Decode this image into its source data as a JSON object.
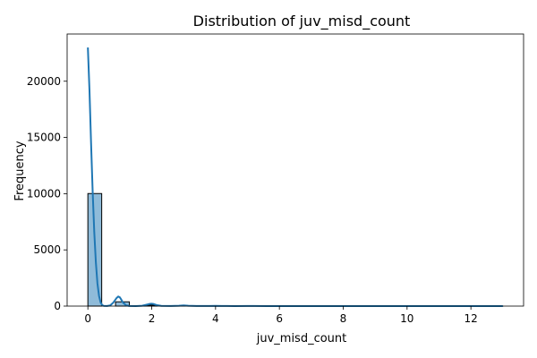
{
  "chart_data": {
    "type": "bar",
    "title": "Distribution of juv_misd_count",
    "xlabel": "juv_misd_count",
    "ylabel": "Frequency",
    "xlim": [
      -0.65,
      13.65
    ],
    "ylim": [
      0,
      24200
    ],
    "x_ticks": [
      0,
      2,
      4,
      6,
      8,
      10,
      12
    ],
    "y_ticks": [
      0,
      5000,
      10000,
      15000,
      20000
    ],
    "grid": false,
    "legend": "none",
    "bar_color": "#1f77b4",
    "bar_alpha": 0.5,
    "line_color": "#1f77b4",
    "bins": [
      {
        "x0": 0.0,
        "x1": 0.4333,
        "value": 10010
      },
      {
        "x0": 0.8667,
        "x1": 1.3,
        "value": 380
      },
      {
        "x0": 1.7333,
        "x1": 2.1667,
        "value": 80
      },
      {
        "x0": 2.6,
        "x1": 3.0333,
        "value": 30
      },
      {
        "x0": 3.9,
        "x1": 4.3333,
        "value": 12
      },
      {
        "x0": 4.7667,
        "x1": 5.2,
        "value": 6
      },
      {
        "x0": 5.6333,
        "x1": 6.0667,
        "value": 3
      },
      {
        "x0": 12.5667,
        "x1": 13.0,
        "value": 1
      }
    ],
    "kde": {
      "x": [
        0.0,
        0.05,
        0.1,
        0.15,
        0.2,
        0.25,
        0.3,
        0.35,
        0.4,
        0.45,
        0.5,
        0.6,
        0.7,
        0.8,
        0.9,
        0.95,
        1.0,
        1.05,
        1.1,
        1.2,
        1.3,
        1.5,
        1.7,
        1.85,
        1.95,
        2.0,
        2.05,
        2.15,
        2.3,
        2.6,
        2.85,
        3.0,
        3.15,
        3.4,
        3.8,
        4.0,
        4.2,
        4.6,
        5.0,
        5.2,
        5.6,
        6.0,
        7.0,
        8.0,
        9.0,
        10.0,
        11.0,
        12.0,
        13.0
      ],
      "y": [
        23000,
        19200,
        14500,
        10200,
        6600,
        3900,
        2000,
        900,
        320,
        90,
        20,
        10,
        60,
        320,
        720,
        850,
        780,
        560,
        320,
        60,
        10,
        5,
        30,
        130,
        200,
        210,
        190,
        90,
        20,
        8,
        30,
        55,
        30,
        8,
        10,
        20,
        10,
        4,
        8,
        6,
        3,
        4,
        2,
        1,
        1,
        1,
        1,
        1,
        0
      ]
    }
  }
}
